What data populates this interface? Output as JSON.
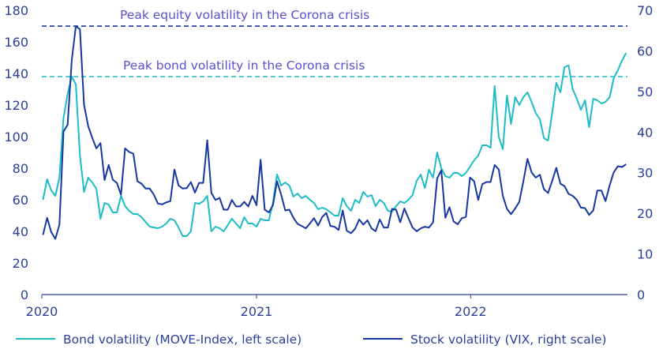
{
  "chart_data": {
    "type": "line",
    "xlabel": "",
    "x_ticks": [
      "2020",
      "2021",
      "2022"
    ],
    "left_axis": {
      "ylim": [
        0,
        180
      ],
      "ticks": [
        "0",
        "20",
        "40",
        "60",
        "80",
        "100",
        "120",
        "140",
        "160",
        "180"
      ]
    },
    "right_axis": {
      "ylim": [
        0,
        70
      ],
      "ticks": [
        "0",
        "10",
        "20",
        "30",
        "40",
        "50",
        "60",
        "70"
      ]
    },
    "grid": false,
    "legend_position": "bottom",
    "colors": {
      "bond": "#1cbcc6",
      "stock": "#1637a0",
      "text": "#2a3f9a",
      "annotation": "#5b4fd0"
    },
    "reference_lines": [
      {
        "label": "Peak equity volatility in the Corona crisis",
        "axis": "right",
        "value": 66.1,
        "color": "#1637a0",
        "style": "dashed"
      },
      {
        "label": "Peak bond volatility in the Corona crisis",
        "axis": "left",
        "value": 138,
        "color": "#1cbcc6",
        "style": "dashed"
      }
    ],
    "dates": [
      "2020-01-03",
      "2020-01-10",
      "2020-01-17",
      "2020-01-24",
      "2020-01-31",
      "2020-02-07",
      "2020-02-14",
      "2020-02-21",
      "2020-02-28",
      "2020-03-06",
      "2020-03-13",
      "2020-03-20",
      "2020-03-27",
      "2020-04-03",
      "2020-04-10",
      "2020-04-17",
      "2020-04-24",
      "2020-05-01",
      "2020-05-08",
      "2020-05-15",
      "2020-05-22",
      "2020-05-29",
      "2020-06-05",
      "2020-06-12",
      "2020-06-19",
      "2020-06-26",
      "2020-07-03",
      "2020-07-10",
      "2020-07-17",
      "2020-07-24",
      "2020-07-31",
      "2020-08-07",
      "2020-08-14",
      "2020-08-21",
      "2020-08-28",
      "2020-09-04",
      "2020-09-11",
      "2020-09-18",
      "2020-09-25",
      "2020-10-02",
      "2020-10-09",
      "2020-10-16",
      "2020-10-23",
      "2020-10-30",
      "2020-11-06",
      "2020-11-13",
      "2020-11-20",
      "2020-11-27",
      "2020-12-04",
      "2020-12-11",
      "2020-12-18",
      "2020-12-25",
      "2021-01-01",
      "2021-01-08",
      "2021-01-15",
      "2021-01-22",
      "2021-01-29",
      "2021-02-05",
      "2021-02-12",
      "2021-02-19",
      "2021-02-26",
      "2021-03-05",
      "2021-03-12",
      "2021-03-19",
      "2021-03-26",
      "2021-04-02",
      "2021-04-09",
      "2021-04-16",
      "2021-04-23",
      "2021-04-30",
      "2021-05-07",
      "2021-05-14",
      "2021-05-21",
      "2021-05-28",
      "2021-06-04",
      "2021-06-11",
      "2021-06-18",
      "2021-06-25",
      "2021-07-02",
      "2021-07-09",
      "2021-07-16",
      "2021-07-23",
      "2021-07-30",
      "2021-08-06",
      "2021-08-13",
      "2021-08-20",
      "2021-08-27",
      "2021-09-03",
      "2021-09-10",
      "2021-09-17",
      "2021-09-24",
      "2021-10-01",
      "2021-10-08",
      "2021-10-15",
      "2021-10-22",
      "2021-10-29",
      "2021-11-05",
      "2021-11-12",
      "2021-11-19",
      "2021-11-26",
      "2021-12-03",
      "2021-12-10",
      "2021-12-17",
      "2021-12-24",
      "2021-12-31",
      "2022-01-07",
      "2022-01-14",
      "2022-01-21",
      "2022-01-28",
      "2022-02-04",
      "2022-02-11",
      "2022-02-18",
      "2022-02-25",
      "2022-03-04",
      "2022-03-11",
      "2022-03-18",
      "2022-03-25",
      "2022-04-01",
      "2022-04-08",
      "2022-04-15",
      "2022-04-22",
      "2022-04-29",
      "2022-05-06",
      "2022-05-13",
      "2022-05-20",
      "2022-05-27",
      "2022-06-03",
      "2022-06-10",
      "2022-06-17",
      "2022-06-24",
      "2022-07-01",
      "2022-07-08",
      "2022-07-15",
      "2022-07-22",
      "2022-07-29",
      "2022-08-05",
      "2022-08-12",
      "2022-08-19",
      "2022-08-26",
      "2022-09-02",
      "2022-09-09",
      "2022-09-16",
      "2022-09-23"
    ],
    "series": [
      {
        "name": "Bond volatility (MOVE-Index, left scale)",
        "axis": "left",
        "values": [
          60,
          73,
          66,
          62.5,
          74,
          112,
          127,
          138,
          133,
          88,
          65,
          74,
          71,
          67,
          48,
          58,
          57,
          52,
          52,
          62.5,
          56,
          53,
          51,
          51,
          49,
          46,
          43,
          42.5,
          42,
          43,
          45,
          48,
          47,
          42.5,
          37,
          37,
          40,
          58,
          57.5,
          59,
          62.5,
          40,
          43,
          42,
          40,
          44,
          48,
          45,
          42,
          49,
          45,
          45,
          43,
          48,
          47,
          47,
          58,
          76,
          69,
          71,
          69,
          62,
          64,
          61,
          62.5,
          60,
          58,
          54,
          55,
          54,
          52,
          50,
          50,
          61,
          56,
          53,
          60,
          58,
          65,
          62,
          63,
          56,
          60,
          58,
          53,
          52.5,
          56,
          59,
          58,
          60,
          63,
          72,
          76,
          67.5,
          79,
          74,
          90,
          80,
          75,
          74,
          77,
          77,
          75,
          77,
          81,
          85,
          88,
          94.5,
          94.5,
          93,
          132,
          100,
          92,
          126,
          108,
          125,
          120,
          125,
          128,
          122,
          115,
          111,
          99,
          97.5,
          115,
          134,
          128,
          144,
          145,
          130,
          124,
          117,
          123,
          106,
          124,
          123,
          121,
          122,
          125,
          137,
          142,
          148,
          153
        ]
      },
      {
        "name": "Stock volatility (VIX, right scale)",
        "axis": "right",
        "values": [
          14.7,
          18.9,
          15.4,
          13.7,
          17.2,
          40.2,
          41.8,
          57.7,
          66.1,
          65.3,
          46.7,
          41.5,
          38.6,
          36,
          37.3,
          28.2,
          31.9,
          28.3,
          27.5,
          24.6,
          36,
          35.1,
          34.7,
          27.9,
          27.3,
          26.1,
          26.1,
          24.6,
          22.4,
          22.2,
          22.7,
          23,
          30.8,
          26.9,
          26.1,
          26.2,
          27.7,
          25.1,
          27.5,
          27.5,
          38,
          25,
          23.3,
          23.8,
          20.9,
          20.9,
          23.3,
          21.7,
          21.7,
          22.8,
          21.7,
          24.3,
          22,
          33.2,
          20.9,
          20.2,
          22,
          27.9,
          24.6,
          20.7,
          20.9,
          18.9,
          17.4,
          16.9,
          16.3,
          17.5,
          18.8,
          17,
          19.1,
          20.1,
          16.9,
          16.7,
          15.9,
          20.7,
          15.7,
          15.1,
          16.2,
          18.5,
          17.2,
          18.3,
          16.3,
          15.6,
          18.5,
          16.5,
          16.5,
          21.1,
          20.9,
          17.8,
          21.2,
          18.8,
          16.5,
          15.6,
          16.3,
          16.7,
          16.5,
          17.8,
          28.6,
          30.6,
          18.9,
          21.5,
          18,
          17.3,
          18.8,
          19.1,
          28.8,
          27.9,
          23.3,
          27.2,
          27.7,
          27.7,
          31.9,
          30.8,
          24.3,
          21.1,
          19.8,
          21.2,
          22.8,
          27.9,
          33.4,
          30.1,
          28.8,
          29.5,
          25.9,
          25,
          28,
          31.2,
          27.3,
          26.7,
          24.8,
          24.3,
          23.3,
          21.4,
          21.3,
          19.6,
          20.7,
          25.6,
          25.6,
          23,
          26.9,
          30.1,
          31.6,
          31.4,
          32.1
        ]
      }
    ]
  }
}
